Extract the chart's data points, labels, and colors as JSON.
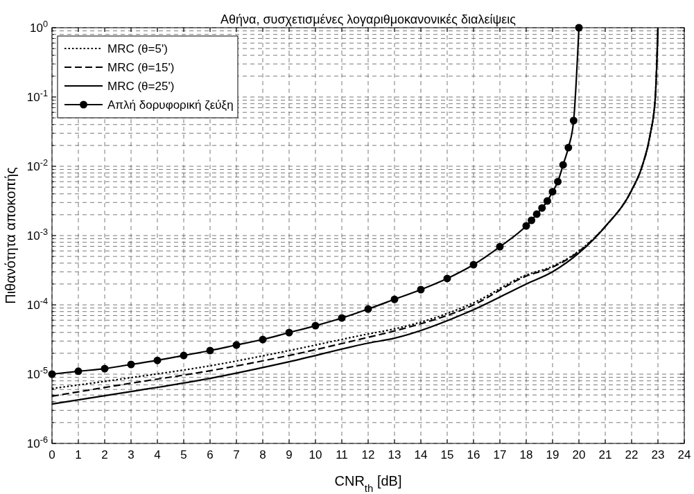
{
  "chart_data": {
    "type": "line",
    "title": "Αθήνα, συσχετισμένες λογαριθμοκανονικές διαλείψεις",
    "xlabel": "CNR$_{th}$ [dB]",
    "ylabel": "Πιθανότητα αποκοπής",
    "log": "y",
    "grid": true,
    "legend": "top left",
    "xlim": [
      0,
      24
    ],
    "xticks": [
      0,
      1,
      2,
      3,
      4,
      5,
      6,
      7,
      8,
      9,
      10,
      11,
      12,
      13,
      14,
      15,
      16,
      17,
      18,
      19,
      20,
      21,
      22,
      23,
      24
    ],
    "ylim": [
      1e-06,
      1
    ],
    "yticks": [
      {
        "value": 1e-06,
        "label": "10$^{-6}$"
      },
      {
        "value": 1e-05,
        "label": "10$^{-5}$"
      },
      {
        "value": 0.0001,
        "label": "10$^{-4}$"
      },
      {
        "value": 0.001,
        "label": "10$^{-3}$"
      },
      {
        "value": 0.01,
        "label": "10$^{-2}$"
      },
      {
        "value": 0.1,
        "label": "10$^{-1}$"
      },
      {
        "value": 1,
        "label": "10$^{0}$"
      }
    ],
    "series": [
      {
        "name": "MRC (θ=5')",
        "color": "#000000",
        "line_style": "dotted",
        "marker": "none",
        "x": [
          0,
          3,
          6,
          9,
          12,
          13,
          16,
          18,
          19,
          20,
          21,
          22,
          22.4,
          22.7,
          22.9,
          23
        ],
        "values": [
          6.2e-06,
          8.9e-06,
          1.32e-05,
          2.19e-05,
          3.8e-05,
          4.5e-05,
          0.000107,
          0.00027,
          0.00036,
          0.0006,
          0.00135,
          0.0045,
          0.01,
          0.028,
          0.1,
          1
        ]
      },
      {
        "name": "MRC (θ=15')",
        "color": "#000000",
        "line_style": "dashed",
        "marker": "none",
        "x": [
          0,
          3,
          6,
          9,
          12,
          13,
          16,
          18,
          19,
          20,
          21,
          22,
          22.4,
          22.7,
          22.9,
          23
        ],
        "values": [
          4.8e-06,
          7.4e-06,
          1.12e-05,
          1.86e-05,
          3.4e-05,
          4.2e-05,
          0.0001,
          0.00026,
          0.00035,
          0.00059,
          0.00135,
          0.0045,
          0.01,
          0.028,
          0.1,
          1
        ]
      },
      {
        "name": "MRC (θ=25')",
        "color": "#000000",
        "line_style": "solid",
        "marker": "none",
        "x": [
          0,
          3,
          6,
          9,
          12,
          13,
          16,
          18,
          19,
          20,
          21,
          22,
          22.4,
          22.7,
          22.9,
          23
        ],
        "values": [
          3.7e-06,
          5.6e-06,
          8.7e-06,
          1.51e-05,
          2.8e-05,
          3.3e-05,
          8.5e-05,
          0.0002,
          0.0003,
          0.00056,
          0.00135,
          0.0045,
          0.01,
          0.028,
          0.1,
          1
        ]
      },
      {
        "name": "Απλή δορυφορική ζεύξη",
        "color": "#000000",
        "line_style": "solid",
        "marker": "circle",
        "x": [
          0,
          1,
          2,
          3,
          4,
          5,
          6,
          7,
          8,
          9,
          10,
          11,
          12,
          13,
          14,
          15,
          16,
          17,
          18,
          18.2,
          18.4,
          18.6,
          18.8,
          19,
          19.2,
          19.4,
          19.6,
          19.8,
          20
        ],
        "values": [
          1e-05,
          1.1e-05,
          1.2e-05,
          1.38e-05,
          1.58e-05,
          1.86e-05,
          2.19e-05,
          2.63e-05,
          3.16e-05,
          3.98e-05,
          5e-05,
          6.46e-05,
          8.7e-05,
          0.00012,
          0.000166,
          0.00024,
          0.00038,
          0.00069,
          0.00138,
          0.00166,
          0.00204,
          0.0025,
          0.00316,
          0.0043,
          0.006,
          0.0105,
          0.0186,
          0.0457,
          1
        ]
      }
    ]
  }
}
